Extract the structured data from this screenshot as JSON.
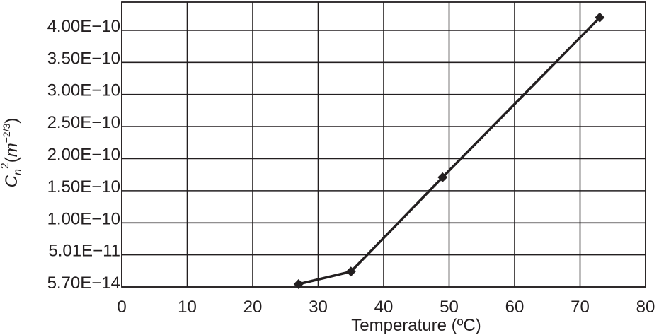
{
  "chart_data": {
    "type": "line",
    "xlabel": "Temperature (ºC)",
    "ylabel_base": "C",
    "ylabel_sub": "n",
    "ylabel_sup": "2",
    "ylabel_unit_open": "(",
    "ylabel_unit_var": "m",
    "ylabel_unit_sup": "−2/3",
    "ylabel_unit_close": ")",
    "xlim": [
      0,
      80
    ],
    "x_ticks": [
      "0",
      "10",
      "20",
      "30",
      "40",
      "50",
      "60",
      "70",
      "80"
    ],
    "y_ticks": [
      "5.70E−14",
      "5.01E−11",
      "1.00E−10",
      "1.50E−10",
      "2.00E−10",
      "2.50E−10",
      "3.00E−10",
      "3.50E−10",
      "4.00E−10"
    ],
    "y_tick_values": [
      5.7e-14,
      5.01e-11,
      1e-10,
      1.5e-10,
      2e-10,
      2.5e-10,
      3e-10,
      3.5e-10,
      4e-10
    ],
    "ylim": [
      5.7e-14,
      4.44e-10
    ],
    "grid": true,
    "series": [
      {
        "x": [
          27,
          35,
          49,
          73
        ],
        "y": [
          4.5e-12,
          2.4e-11,
          1.71e-10,
          4.2e-10
        ]
      }
    ]
  }
}
